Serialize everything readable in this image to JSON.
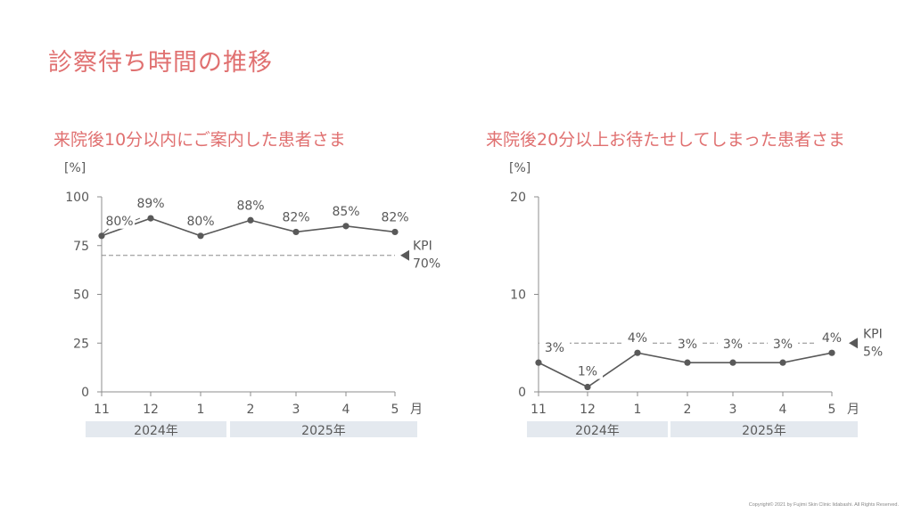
{
  "page": {
    "title": "診察待ち時間の推移",
    "footer": "Copyright© 2021 by Fujimi Skin Clinic Iidabashi. All Rights Reserved."
  },
  "colors": {
    "title": "#e07070",
    "line": "#595959",
    "axis": "#8c8c8c",
    "text": "#595959",
    "year_band": "#e4e9ef"
  },
  "chart_data": [
    {
      "type": "line",
      "title": "来院後10分以内にご案内した患者さま",
      "unit_label": "[%]",
      "x_unit": "月",
      "categories": [
        "11",
        "12",
        "1",
        "2",
        "3",
        "4",
        "5"
      ],
      "values": [
        80,
        89,
        80,
        88,
        82,
        85,
        82
      ],
      "data_labels": [
        "80%",
        "89%",
        "80%",
        "88%",
        "82%",
        "85%",
        "82%"
      ],
      "ylim": [
        0,
        100
      ],
      "yticks": [
        0,
        25,
        50,
        75,
        100
      ],
      "kpi": {
        "label": "KPI",
        "value": 70,
        "value_label": "70%"
      },
      "years": [
        {
          "label": "2024年",
          "months": [
            "11",
            "12"
          ]
        },
        {
          "label": "2025年",
          "months": [
            "1",
            "2",
            "3",
            "4",
            "5"
          ]
        }
      ]
    },
    {
      "type": "line",
      "title": "来院後20分以上お待たせしてしまった患者さま",
      "unit_label": "[%]",
      "x_unit": "月",
      "categories": [
        "11",
        "12",
        "1",
        "2",
        "3",
        "4",
        "5"
      ],
      "values": [
        3,
        0.5,
        4,
        3,
        3,
        3,
        4
      ],
      "data_labels": [
        "3%",
        "1%",
        "4%",
        "3%",
        "3%",
        "3%",
        "4%"
      ],
      "ylim": [
        0,
        20
      ],
      "yticks": [
        0,
        10,
        20
      ],
      "kpi": {
        "label": "KPI",
        "value": 5,
        "value_label": "5%"
      },
      "years": [
        {
          "label": "2024年",
          "months": [
            "11",
            "12"
          ]
        },
        {
          "label": "2025年",
          "months": [
            "1",
            "2",
            "3",
            "4",
            "5"
          ]
        }
      ]
    }
  ]
}
